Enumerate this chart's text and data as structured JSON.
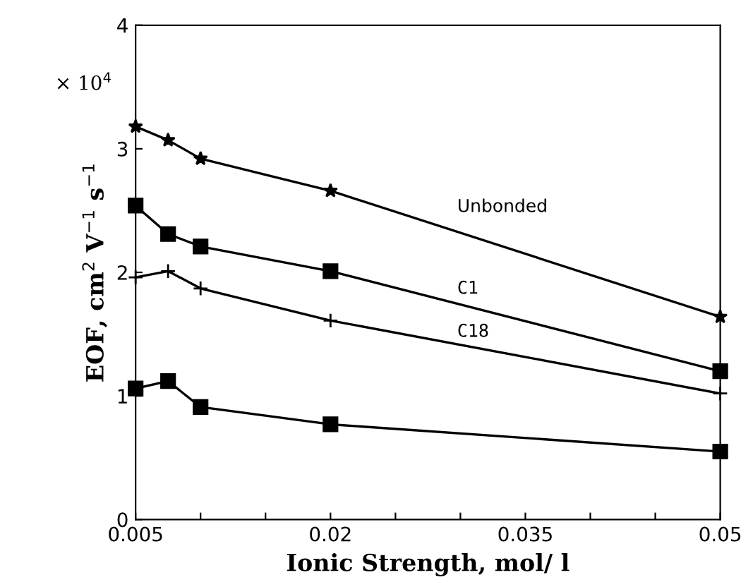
{
  "chart_data": {
    "type": "line",
    "xlabel": "Ionic Strength, mol/ l",
    "ylabel": "EOF, cm$^{2}$ V$^{−1}$ s$^{−1}$",
    "annotations": [
      "× 10$^{4}$"
    ],
    "x": [
      0.005,
      0.0075,
      0.01,
      0.02,
      0.05
    ],
    "series": [
      {
        "name": "Unbonded",
        "color": "#000000",
        "marker": "star",
        "values": [
          3.18,
          3.07,
          2.92,
          2.66,
          1.64
        ]
      },
      {
        "name": "C1",
        "color": "#000000",
        "marker": "square",
        "values": [
          2.54,
          2.31,
          2.21,
          2.01,
          1.2
        ]
      },
      {
        "name": "C18",
        "color": "#000000",
        "marker": "cross",
        "values": [
          1.96,
          2.01,
          1.87,
          1.61,
          1.02
        ]
      },
      {
        "color": "#000000",
        "marker": "square",
        "values": [
          1.06,
          1.12,
          0.91,
          0.77,
          0.55
        ]
      }
    ],
    "xlim": [
      0.005,
      0.05
    ],
    "xticks": [
      0.005,
      {
        "value": 0.01,
        "label": null
      },
      {
        "value": 0.015,
        "label": null
      },
      0.02,
      {
        "value": 0.025,
        "label": null
      },
      {
        "value": 0.03,
        "label": null
      },
      0.035,
      {
        "value": 0.04,
        "label": null
      },
      {
        "value": 0.045,
        "label": null
      },
      0.05
    ],
    "ylim": [
      0,
      4
    ],
    "yticks": [
      0,
      1,
      2,
      3,
      4
    ],
    "grid": false,
    "legend": false,
    "line_style": "solid"
  }
}
